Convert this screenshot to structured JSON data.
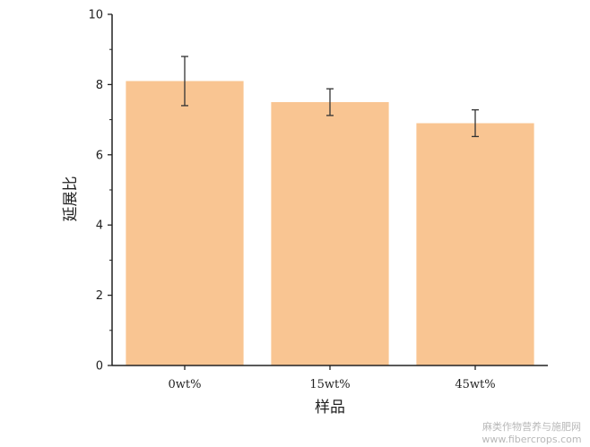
{
  "chart_data": {
    "type": "bar",
    "categories": [
      "0wt%",
      "15wt%",
      "45wt%"
    ],
    "values": [
      8.1,
      7.5,
      6.9
    ],
    "errors": [
      0.7,
      0.38,
      0.38
    ],
    "xlabel": "样品",
    "ylabel": "延展比",
    "ylim": [
      0,
      10
    ],
    "yticks": [
      "0",
      "2",
      "4",
      "6",
      "8",
      "10"
    ],
    "grid": false,
    "bar_color": "#f9c592",
    "error_color": "#333333"
  },
  "watermark": {
    "line1": "麻类作物营养与施肥网",
    "line2": "www.fibercrops.com"
  }
}
